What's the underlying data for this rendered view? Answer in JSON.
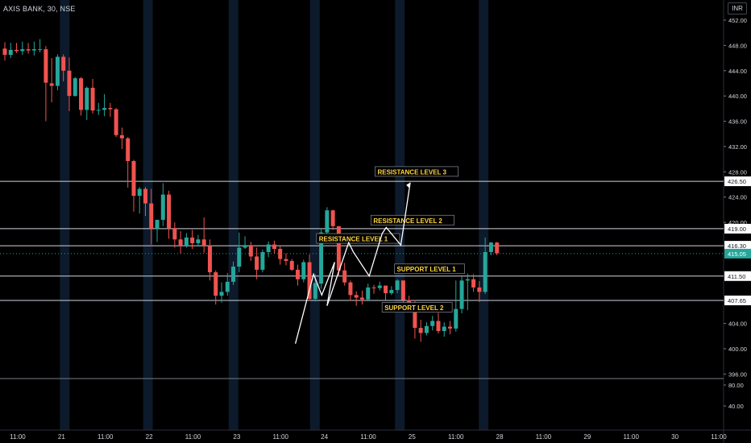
{
  "header": {
    "symbol_title": "AXIS BANK, 30, NSE",
    "currency": "INR"
  },
  "colors": {
    "up": "#26a69a",
    "down": "#ef5350",
    "level_line": "#d1d4dc",
    "last_price_bg": "#26a69a",
    "annotation_text": "#ffd740",
    "session_band": "#0c1a2b",
    "grid": "#2a2e39"
  },
  "chart_data": {
    "type": "candlestick",
    "symbol": "AXIS BANK",
    "interval": "30",
    "exchange": "NSE",
    "y_ticks": [
      "452.00",
      "448.00",
      "444.00",
      "440.00",
      "436.00",
      "432.00",
      "428.00",
      "424.00",
      "420.00",
      "404.00",
      "400.00",
      "396.00"
    ],
    "volume_ticks": [
      "80.00",
      "40.00"
    ],
    "x_tick_labels": [
      "11:00",
      "21",
      "11:00",
      "22",
      "11:00",
      "23",
      "11:00",
      "24",
      "11:00",
      "25",
      "11:00",
      "28",
      "11:00",
      "29",
      "11:00",
      "30",
      "11:00"
    ],
    "price_labels": [
      {
        "value": "426.50",
        "kind": "level"
      },
      {
        "value": "419.00",
        "kind": "level"
      },
      {
        "value": "416.30",
        "kind": "level"
      },
      {
        "value": "415.05",
        "kind": "last"
      },
      {
        "value": "411.50",
        "kind": "level"
      },
      {
        "value": "407.65",
        "kind": "level"
      }
    ],
    "horizontal_levels": [
      426.5,
      419.0,
      416.3,
      411.5,
      407.65
    ],
    "last_price": 415.05,
    "annotations": [
      {
        "text": "RESISTANCE LEVEL 3",
        "price": 427.8,
        "bar": 63.2
      },
      {
        "text": "RESISTANCE LEVEL 2",
        "price": 420.1,
        "bar": 62.5
      },
      {
        "text": "RESISTANCE LEVEL 1",
        "price": 417.2,
        "bar": 53.2
      },
      {
        "text": "SUPPORT LEVEL 1",
        "price": 412.4,
        "bar": 66.5
      },
      {
        "text": "SUPPORT LEVEL 2",
        "price": 406.3,
        "bar": 64.4
      }
    ],
    "projection_arrow": [
      {
        "bar": 49.6,
        "price": 400.8
      },
      {
        "bar": 52.7,
        "price": 411.8
      },
      {
        "bar": 54.1,
        "price": 408.5
      },
      {
        "bar": 56.3,
        "price": 413.7
      },
      {
        "bar": 55.0,
        "price": 406.8
      },
      {
        "bar": 58.7,
        "price": 416.8
      },
      {
        "bar": 59.5,
        "price": 415.3
      },
      {
        "bar": 62.2,
        "price": 411.5
      },
      {
        "bar": 64.4,
        "price": 418.2
      },
      {
        "bar": 65.1,
        "price": 419.2
      },
      {
        "bar": 67.6,
        "price": 416.4
      },
      {
        "bar": 69.2,
        "price": 426.3
      }
    ],
    "candles": [
      [
        447.5,
        446.5,
        448.5,
        445.6
      ],
      [
        446.5,
        447.3,
        448.4,
        446.0
      ],
      [
        447.3,
        447.1,
        448.4,
        446.8
      ],
      [
        447.1,
        447.4,
        448.6,
        446.5
      ],
      [
        447.4,
        447.2,
        448.4,
        446.7
      ],
      [
        447.2,
        447.4,
        448.6,
        446.4
      ],
      [
        447.3,
        447.4,
        449.0,
        446.9
      ],
      [
        447.4,
        442.1,
        447.9,
        436.0
      ],
      [
        442.0,
        441.6,
        446.0,
        439.0
      ],
      [
        441.6,
        446.2,
        446.6,
        440.9
      ],
      [
        446.2,
        444.0,
        446.6,
        442.3
      ],
      [
        444.0,
        440.0,
        446.1,
        437.6
      ],
      [
        440.0,
        442.8,
        443.0,
        439.9
      ],
      [
        442.8,
        437.8,
        443.0,
        436.9
      ],
      [
        437.8,
        441.3,
        441.5,
        436.2
      ],
      [
        441.3,
        437.7,
        442.7,
        437.2
      ],
      [
        437.7,
        437.8,
        438.9,
        437.0
      ],
      [
        437.8,
        438.1,
        440.3,
        436.8
      ],
      [
        438.1,
        437.9,
        438.9,
        436.7
      ],
      [
        437.9,
        433.8,
        438.1,
        433.5
      ],
      [
        433.8,
        433.3,
        435.0,
        431.6
      ],
      [
        433.3,
        429.7,
        433.5,
        425.5
      ],
      [
        429.7,
        424.2,
        429.9,
        421.7
      ],
      [
        424.2,
        425.3,
        425.6,
        421.4
      ],
      [
        425.3,
        423.0,
        425.6,
        421.0
      ],
      [
        423.0,
        419.0,
        425.3,
        416.5
      ],
      [
        419.0,
        420.4,
        420.4,
        416.9
      ],
      [
        420.4,
        424.4,
        426.2,
        419.4
      ],
      [
        424.4,
        419.1,
        425.0,
        417.4
      ],
      [
        419.1,
        417.3,
        420.0,
        416.0
      ],
      [
        417.3,
        416.3,
        418.6,
        415.1
      ],
      [
        416.3,
        417.6,
        418.3,
        416.0
      ],
      [
        417.6,
        416.7,
        418.8,
        415.8
      ],
      [
        416.7,
        417.3,
        418.0,
        416.2
      ],
      [
        417.3,
        416.3,
        420.8,
        415.2
      ],
      [
        416.3,
        412.1,
        417.3,
        410.8
      ],
      [
        412.1,
        408.4,
        412.4,
        407.0
      ],
      [
        408.4,
        409.0,
        410.5,
        407.3
      ],
      [
        409.0,
        410.6,
        412.0,
        408.4
      ],
      [
        410.6,
        413.0,
        413.8,
        410.1
      ],
      [
        413.0,
        416.0,
        418.4,
        412.1
      ],
      [
        416.0,
        416.4,
        417.8,
        415.8
      ],
      [
        416.4,
        414.6,
        416.9,
        413.9
      ],
      [
        414.6,
        412.5,
        416.0,
        411.0
      ],
      [
        412.5,
        415.3,
        415.7,
        412.1
      ],
      [
        415.3,
        416.5,
        417.0,
        414.5
      ],
      [
        416.5,
        415.8,
        417.1,
        415.1
      ],
      [
        415.8,
        414.2,
        416.2,
        413.3
      ],
      [
        414.2,
        413.9,
        415.1,
        413.2
      ],
      [
        413.9,
        412.5,
        414.2,
        412.3
      ],
      [
        412.5,
        411.0,
        413.3,
        410.0
      ],
      [
        411.0,
        413.7,
        414.1,
        410.5
      ],
      [
        413.7,
        407.9,
        414.9,
        407.6
      ],
      [
        407.9,
        410.4,
        411.8,
        407.5
      ],
      [
        410.3,
        418.4,
        418.9,
        409.5
      ],
      [
        418.4,
        421.9,
        422.4,
        417.4
      ],
      [
        421.9,
        419.4,
        422.0,
        418.8
      ],
      [
        419.4,
        412.4,
        413.8,
        411.6
      ],
      [
        412.4,
        410.5,
        413.6,
        410.0
      ],
      [
        410.5,
        408.5,
        410.8,
        407.6
      ],
      [
        408.5,
        408.1,
        409.1,
        406.8
      ],
      [
        408.1,
        407.8,
        409.2,
        407.0
      ],
      [
        407.8,
        409.7,
        410.3,
        407.5
      ],
      [
        409.7,
        409.6,
        410.1,
        408.7
      ],
      [
        409.6,
        410.0,
        410.6,
        409.2
      ],
      [
        410.0,
        408.8,
        409.6,
        407.7
      ],
      [
        408.8,
        409.3,
        409.9,
        408.5
      ],
      [
        409.3,
        410.8,
        411.0,
        408.8
      ],
      [
        410.8,
        407.7,
        410.8,
        406.2
      ],
      [
        407.7,
        407.2,
        408.4,
        406.6
      ],
      [
        407.2,
        403.3,
        407.7,
        401.6
      ],
      [
        403.3,
        402.5,
        404.6,
        401.1
      ],
      [
        402.5,
        403.6,
        404.2,
        402.1
      ],
      [
        403.6,
        404.4,
        405.2,
        402.9
      ],
      [
        404.4,
        402.8,
        405.7,
        402.4
      ],
      [
        402.8,
        403.5,
        404.2,
        401.9
      ],
      [
        403.5,
        403.2,
        404.4,
        402.3
      ],
      [
        403.2,
        406.3,
        410.8,
        402.7
      ],
      [
        406.3,
        410.8,
        411.4,
        405.6
      ],
      [
        410.8,
        411.0,
        411.9,
        406.1
      ],
      [
        411.0,
        409.7,
        411.8,
        409.0
      ],
      [
        409.7,
        409.0,
        410.7,
        407.4
      ],
      [
        409.0,
        415.3,
        417.6,
        408.7
      ],
      [
        415.3,
        416.8,
        416.9,
        414.8
      ],
      [
        416.8,
        415.1,
        416.9,
        414.8
      ]
    ]
  }
}
